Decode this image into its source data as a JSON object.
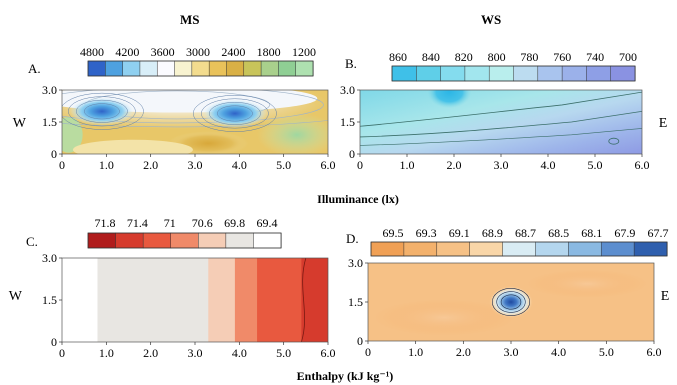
{
  "chart_data": [
    {
      "panel": "A.",
      "header": "MS",
      "type": "heatmap",
      "legend_values": [
        "4800",
        "4200",
        "3600",
        "3000",
        "2400",
        "1800",
        "1200"
      ],
      "legend_colors": [
        "#2f63c8",
        "#4ea1e0",
        "#8fd0f0",
        "#d8eef8",
        "#fbfbff",
        "#f8f3d0",
        "#f3dc8e",
        "#e9c25a",
        "#d9b045",
        "#c8c45a",
        "#a9d08c",
        "#8fcf94",
        "#aee1b0"
      ],
      "y_side_label": "W",
      "x_ticks": [
        "0",
        "1.0",
        "2.0",
        "3.0",
        "4.0",
        "5.0",
        "6.0"
      ],
      "y_ticks": [
        "3.0",
        "1.5",
        "0"
      ],
      "xlim": [
        0,
        6
      ],
      "ylim": [
        0,
        3
      ],
      "blobs": [
        {
          "x": 0.9,
          "y": 2.0,
          "value": 4800
        },
        {
          "x": 3.9,
          "y": 1.9,
          "value": 4800
        },
        {
          "x": 2.6,
          "y": 2.2,
          "value": 3000
        },
        {
          "x": 3.2,
          "y": 0.4,
          "value": 1800
        },
        {
          "x": 5.4,
          "y": 1.0,
          "value": 1200
        }
      ]
    },
    {
      "panel": "B.",
      "header": "WS",
      "type": "heatmap",
      "legend_values": [
        "860",
        "840",
        "820",
        "800",
        "780",
        "760",
        "740",
        "700"
      ],
      "legend_colors": [
        "#3fc0e8",
        "#5fcfe8",
        "#84dcee",
        "#a2e6ee",
        "#b9eeed",
        "#bcdcf0",
        "#a9c4ee",
        "#9bb1ea",
        "#8e9fe6",
        "#8a92e2"
      ],
      "y_side_label": "E",
      "x_ticks": [
        "0",
        "1.0",
        "2.0",
        "3.0",
        "4.0",
        "5.0",
        "6.0"
      ],
      "y_ticks": [
        "3.0",
        "1.5",
        "0"
      ],
      "xlim": [
        0,
        6
      ],
      "ylim": [
        0,
        3
      ],
      "blobs": [
        {
          "x": 1.9,
          "y": 2.9,
          "value": 860
        },
        {
          "x": 1.0,
          "y": 1.8,
          "value": 800
        },
        {
          "x": 3.5,
          "y": 1.2,
          "value": 760
        },
        {
          "x": 5.0,
          "y": 0.5,
          "value": 720
        }
      ]
    },
    {
      "panel": "C.",
      "type": "heatmap",
      "legend_values": [
        "71.8",
        "71.4",
        "71",
        "70.6",
        "69.8",
        "69.4"
      ],
      "legend_colors": [
        "#b01c1c",
        "#d63b2d",
        "#e8593f",
        "#f08a69",
        "#f5cdb6",
        "#e8e6e2",
        "#ffffff"
      ],
      "y_side_label": "W",
      "x_ticks": [
        "0",
        "1.0",
        "2.0",
        "3.0",
        "4.0",
        "5.0",
        "6.0"
      ],
      "y_ticks": [
        "3.0",
        "1.5",
        "0"
      ],
      "xlim": [
        0,
        6
      ],
      "ylim": [
        0,
        3
      ],
      "bands": [
        {
          "x_from": 0.0,
          "x_to": 0.8,
          "color": "#ffffff"
        },
        {
          "x_from": 0.8,
          "x_to": 3.3,
          "color": "#e8e6e2"
        },
        {
          "x_from": 3.3,
          "x_to": 3.9,
          "color": "#f5cdb6"
        },
        {
          "x_from": 3.9,
          "x_to": 4.4,
          "color": "#f08a69"
        },
        {
          "x_from": 4.4,
          "x_to": 5.4,
          "color": "#e8593f"
        },
        {
          "x_from": 5.4,
          "x_to": 6.0,
          "color": "#d63b2d"
        }
      ]
    },
    {
      "panel": "D.",
      "type": "heatmap",
      "legend_values": [
        "69.5",
        "69.3",
        "69.1",
        "68.9",
        "68.7",
        "68.5",
        "68.1",
        "67.9",
        "67.7"
      ],
      "legend_colors": [
        "#f0a055",
        "#f3b16c",
        "#f6c186",
        "#f9d6a8",
        "#d9ecf4",
        "#b4d6ee",
        "#8ab9e2",
        "#5c8ecf",
        "#2f5fae"
      ],
      "y_side_label": "E",
      "x_ticks": [
        "0",
        "1.0",
        "2.0",
        "3.0",
        "4.0",
        "5.0",
        "6.0"
      ],
      "y_ticks": [
        "3.0",
        "1.5",
        "0"
      ],
      "xlim": [
        0,
        6
      ],
      "ylim": [
        0,
        3
      ],
      "blobs": [
        {
          "x": 3.0,
          "y": 1.5,
          "value": 67.7
        }
      ]
    }
  ],
  "shared_xlabels": {
    "illuminance": "Illuminance (lx)",
    "enthalpy": "Enthalpy (kJ kg⁻¹)"
  }
}
